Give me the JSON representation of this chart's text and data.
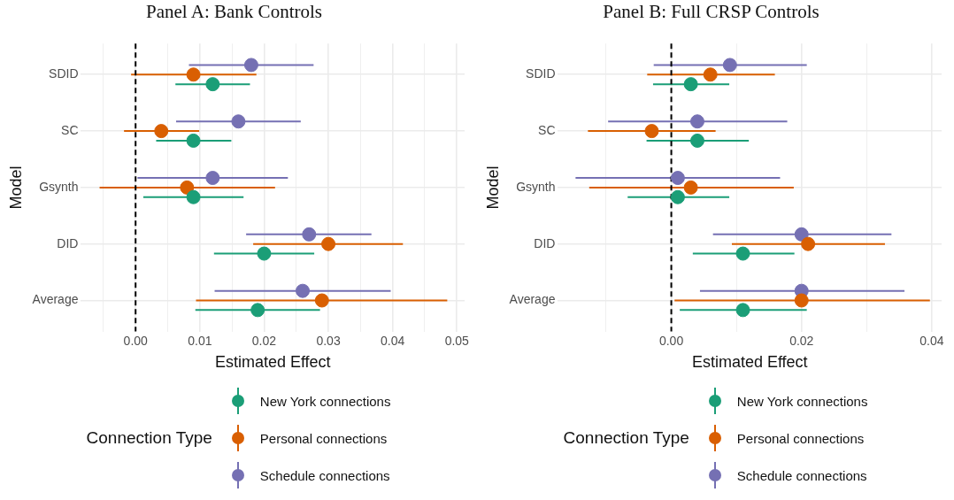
{
  "chart_data": [
    {
      "type": "scatter",
      "title": "Panel A: Bank Controls",
      "xlabel": "Estimated Effect",
      "ylabel": "Model",
      "legend_title": "Connection Type",
      "orientation": "horizontal",
      "categories": [
        "SDID",
        "SC",
        "Gsynth",
        "DID",
        "Average"
      ],
      "series": [
        {
          "name": "New York connections",
          "color": "#1b9e77",
          "values": [
            0.012,
            0.009,
            0.009,
            0.02,
            0.019
          ],
          "errors": [
            [
              0.0062,
              0.0178
            ],
            [
              0.0032,
              0.0149
            ],
            [
              0.0012,
              0.0168
            ],
            [
              0.0122,
              0.0278
            ],
            [
              0.0093,
              0.0287
            ]
          ]
        },
        {
          "name": "Personal connections",
          "color": "#d95f02",
          "values": [
            0.009,
            0.004,
            0.008,
            0.03,
            0.029
          ],
          "errors": [
            [
              -0.0007,
              0.0188
            ],
            [
              -0.0018,
              0.0099
            ],
            [
              -0.0056,
              0.0217
            ],
            [
              0.0183,
              0.0416
            ],
            [
              0.0094,
              0.0485
            ]
          ]
        },
        {
          "name": "Schedule connections",
          "color": "#7570b3",
          "values": [
            0.018,
            0.016,
            0.012,
            0.027,
            0.026
          ],
          "errors": [
            [
              0.0083,
              0.0277
            ],
            [
              0.0063,
              0.0257
            ],
            [
              0.0003,
              0.0237
            ],
            [
              0.0172,
              0.0367
            ],
            [
              0.0123,
              0.0397
            ]
          ]
        }
      ],
      "xlim": [
        -0.0085,
        0.0512
      ],
      "xticks": [
        {
          "value": -0.005,
          "label": null
        },
        {
          "value": 0,
          "label": "0.00"
        },
        {
          "value": 0.005,
          "label": null
        },
        {
          "value": 0.01,
          "label": "0.01"
        },
        {
          "value": 0.015,
          "label": null
        },
        {
          "value": 0.02,
          "label": "0.02"
        },
        {
          "value": 0.025,
          "label": null
        },
        {
          "value": 0.03,
          "label": "0.03"
        },
        {
          "value": 0.035,
          "label": null
        },
        {
          "value": 0.04,
          "label": "0.04"
        },
        {
          "value": 0.045,
          "label": null
        },
        {
          "value": 0.05,
          "label": "0.05"
        }
      ],
      "grid": true,
      "legend": "bottom",
      "marker": "circle",
      "ref_lines": [
        {
          "axis": "x",
          "value": 0,
          "color": "#000000",
          "line_style": "dashed"
        }
      ]
    },
    {
      "type": "scatter",
      "title": "Panel B: Full CRSP Controls",
      "xlabel": "Estimated Effect",
      "ylabel": "Model",
      "legend_title": "Connection Type",
      "orientation": "horizontal",
      "categories": [
        "SDID",
        "SC",
        "Gsynth",
        "DID",
        "Average"
      ],
      "series": [
        {
          "name": "New York connections",
          "color": "#1b9e77",
          "values": [
            0.003,
            0.004,
            0.001,
            0.011,
            0.011
          ],
          "errors": [
            [
              -0.0028,
              0.0089
            ],
            [
              -0.0038,
              0.0119
            ],
            [
              -0.0067,
              0.0089
            ],
            [
              0.0033,
              0.0189
            ],
            [
              0.0013,
              0.0208
            ]
          ]
        },
        {
          "name": "Personal connections",
          "color": "#d95f02",
          "values": [
            0.006,
            -0.003,
            0.003,
            0.021,
            0.02
          ],
          "errors": [
            [
              -0.0037,
              0.0159
            ],
            [
              -0.0128,
              0.0068
            ],
            [
              -0.0126,
              0.0188
            ],
            [
              0.0093,
              0.0328
            ],
            [
              0.0005,
              0.0397
            ]
          ]
        },
        {
          "name": "Schedule connections",
          "color": "#7570b3",
          "values": [
            0.009,
            0.004,
            0.001,
            0.02,
            0.02
          ],
          "errors": [
            [
              -0.0027,
              0.0208
            ],
            [
              -0.0097,
              0.0178
            ],
            [
              -0.0147,
              0.0167
            ],
            [
              0.0064,
              0.0338
            ],
            [
              0.0044,
              0.0358
            ]
          ]
        }
      ],
      "xlim": [
        -0.0174,
        0.0415
      ],
      "xticks": [
        {
          "value": -0.01,
          "label": null
        },
        {
          "value": 0,
          "label": "0.00"
        },
        {
          "value": 0.01,
          "label": null
        },
        {
          "value": 0.02,
          "label": "0.02"
        },
        {
          "value": 0.03,
          "label": null
        },
        {
          "value": 0.04,
          "label": "0.04"
        }
      ],
      "grid": true,
      "legend": "bottom",
      "marker": "circle",
      "ref_lines": [
        {
          "axis": "x",
          "value": 0,
          "color": "#000000",
          "line_style": "dashed"
        }
      ]
    }
  ]
}
